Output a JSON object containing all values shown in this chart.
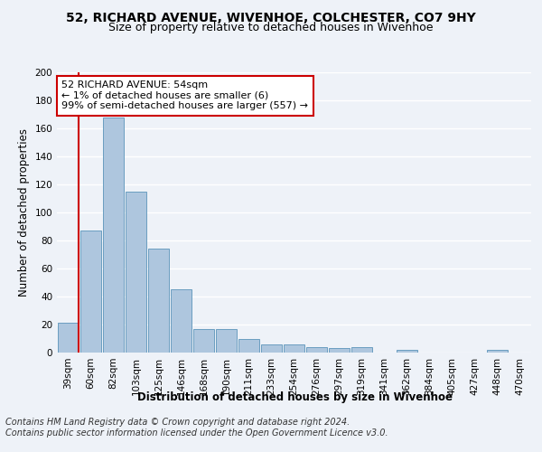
{
  "title1": "52, RICHARD AVENUE, WIVENHOE, COLCHESTER, CO7 9HY",
  "title2": "Size of property relative to detached houses in Wivenhoe",
  "xlabel": "Distribution of detached houses by size in Wivenhoe",
  "ylabel": "Number of detached properties",
  "categories": [
    "39sqm",
    "60sqm",
    "82sqm",
    "103sqm",
    "125sqm",
    "146sqm",
    "168sqm",
    "190sqm",
    "211sqm",
    "233sqm",
    "254sqm",
    "276sqm",
    "297sqm",
    "319sqm",
    "341sqm",
    "362sqm",
    "384sqm",
    "405sqm",
    "427sqm",
    "448sqm",
    "470sqm"
  ],
  "values": [
    21,
    87,
    168,
    115,
    74,
    45,
    17,
    17,
    10,
    6,
    6,
    4,
    3,
    4,
    0,
    2,
    0,
    0,
    0,
    2,
    0
  ],
  "bar_color": "#aec6de",
  "bar_edge_color": "#6a9ec0",
  "annotation_title": "52 RICHARD AVENUE: 54sqm",
  "annotation_line1": "← 1% of detached houses are smaller (6)",
  "annotation_line2": "99% of semi-detached houses are larger (557) →",
  "annotation_box_color": "#ffffff",
  "annotation_box_edge": "#cc0000",
  "red_line_color": "#cc0000",
  "ylim": [
    0,
    200
  ],
  "yticks": [
    0,
    20,
    40,
    60,
    80,
    100,
    120,
    140,
    160,
    180,
    200
  ],
  "footer1": "Contains HM Land Registry data © Crown copyright and database right 2024.",
  "footer2": "Contains public sector information licensed under the Open Government Licence v3.0.",
  "background_color": "#eef2f8",
  "grid_color": "#ffffff",
  "title1_fontsize": 10,
  "title2_fontsize": 9,
  "axis_label_fontsize": 8.5,
  "tick_fontsize": 7.5,
  "footer_fontsize": 7
}
